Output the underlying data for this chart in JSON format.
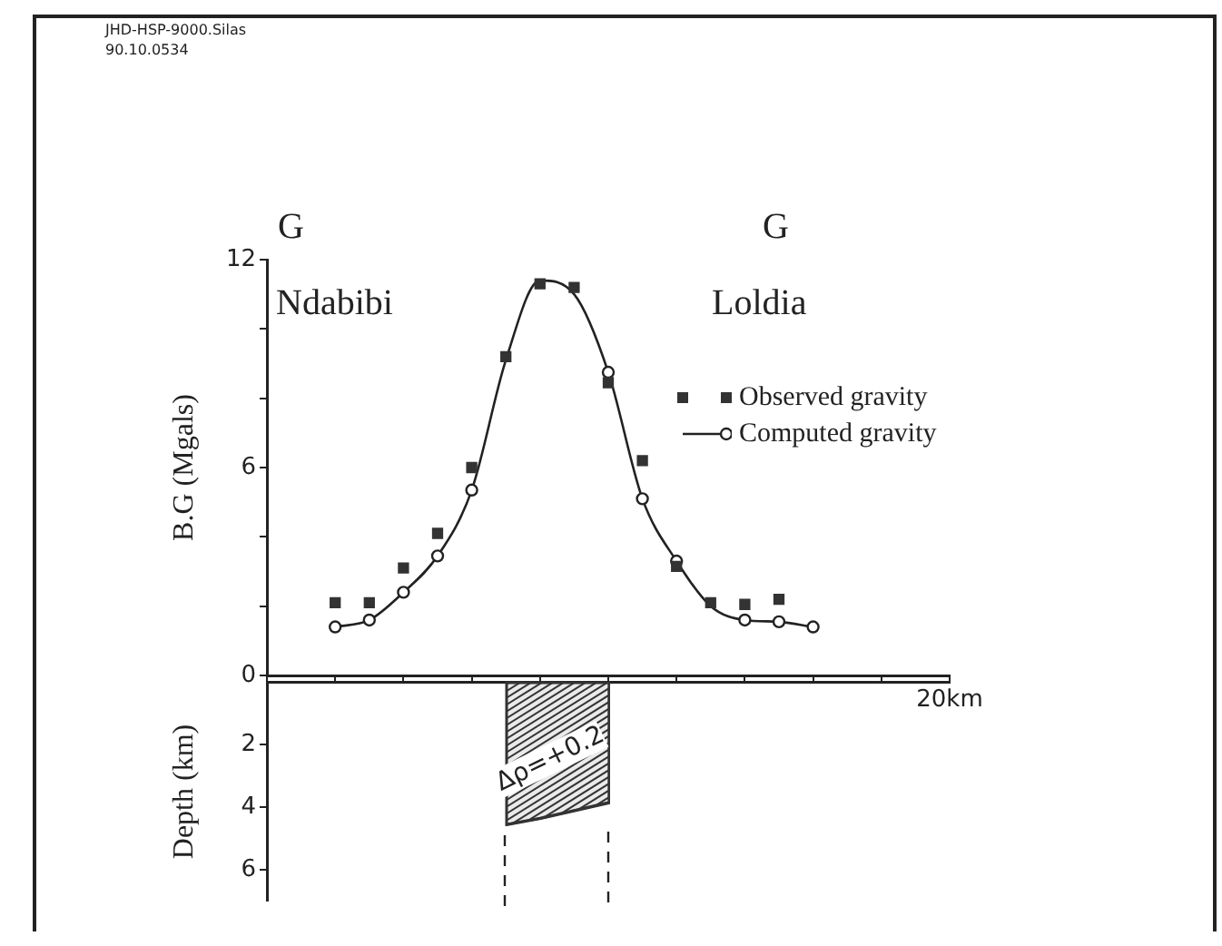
{
  "chart_data": [
    {
      "type": "scatter",
      "ylabel": "B.G (Mgals)",
      "categories": [
        null,
        null,
        null,
        null,
        null,
        null,
        null,
        null,
        null,
        null,
        null,
        null,
        null,
        null,
        null,
        null,
        null,
        null,
        null,
        null,
        "20km"
      ],
      "ylim": [
        0,
        12
      ],
      "yticks": [
        0,
        {
          "value": 2,
          "label": null
        },
        {
          "value": 4,
          "label": null
        },
        6,
        {
          "value": 8,
          "label": null
        },
        {
          "value": 10,
          "label": null
        },
        12
      ],
      "grid": false,
      "legend": "right",
      "annotations": [
        "JHD-HSP-9000.Silas",
        "90.10.0534",
        "G",
        "G",
        "Ndabibi",
        "Loldia"
      ],
      "series": [
        {
          "name": "Observed gravity",
          "marker": "square",
          "color": "#333333",
          "values": [
            null,
            null,
            2.1,
            2.1,
            3.1,
            4.1,
            6,
            9.2,
            11.3,
            11.2,
            8.45,
            6.2,
            3.15,
            2.1,
            2.05,
            2.2,
            null,
            null,
            null,
            null,
            null
          ]
        },
        {
          "name": "Computed gravity",
          "marker": "circle",
          "color": "#222222",
          "values": [
            null,
            null,
            1.4,
            1.6,
            2.4,
            3.45,
            5.35,
            null,
            null,
            null,
            8.75,
            5.1,
            3.3,
            null,
            1.6,
            1.55,
            1.4,
            null,
            null,
            null,
            null
          ]
        },
        {
          "type": "line",
          "marker": "none",
          "color": "#222222",
          "values": [
            null,
            null,
            1.4,
            1.6,
            2.4,
            3.45,
            5.35,
            9.1,
            11.4,
            11.0,
            8.75,
            5.1,
            3.3,
            2.0,
            1.6,
            1.55,
            1.4,
            null,
            null,
            null,
            null
          ]
        }
      ]
    },
    {
      "type": "area",
      "ylabel": "Depth (km)",
      "ylim": [
        7,
        0
      ],
      "yticks": [
        2,
        4,
        6
      ],
      "tick_labels": "y",
      "categories": [
        null,
        null,
        null,
        null,
        null,
        null,
        null,
        null,
        null,
        null,
        null,
        null,
        null,
        null,
        null,
        null,
        null,
        null,
        null,
        null,
        null
      ],
      "annotations": [
        "Δρ=+0.2"
      ],
      "series": [
        {
          "color": "#333333",
          "values": [
            null,
            null,
            null,
            null,
            null,
            null,
            null,
            4.55,
            4.35,
            4.1,
            3.85,
            null,
            null,
            null,
            null,
            null,
            null,
            null,
            null,
            null,
            null
          ]
        }
      ]
    }
  ]
}
